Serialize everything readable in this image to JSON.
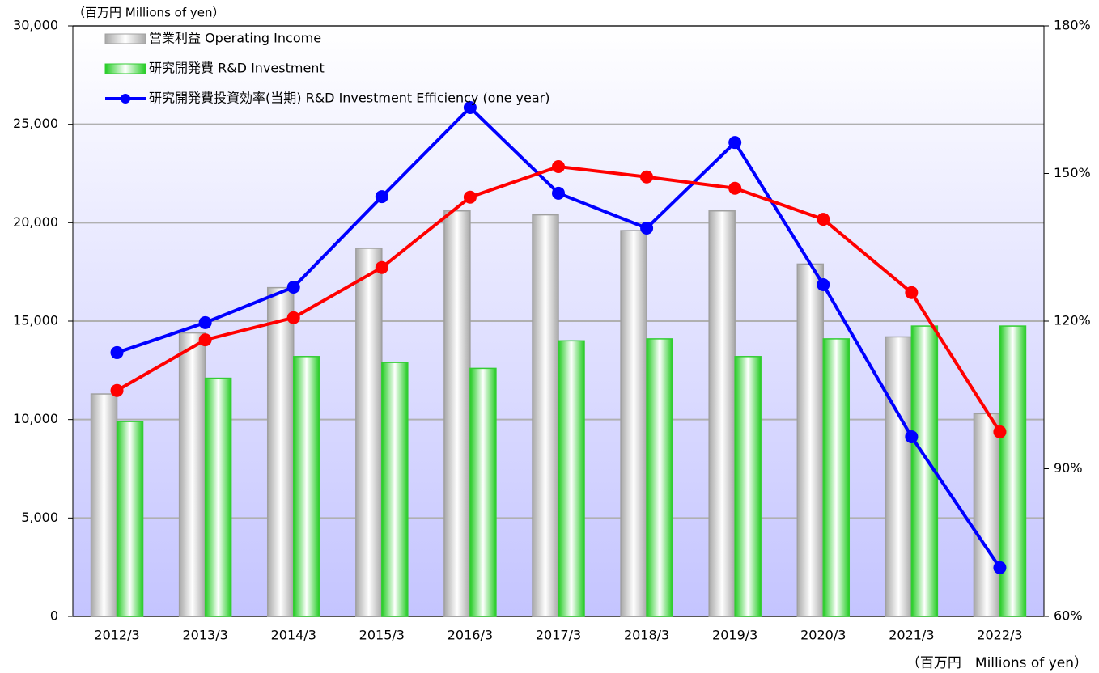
{
  "chart_data": {
    "type": "bar",
    "annotations": [
      "（百万円  Millions of yen）",
      "（百万円　Millions of yen）"
    ],
    "categories": [
      "2012/3",
      "2013/3",
      "2014/3",
      "2015/3",
      "2016/3",
      "2017/3",
      "2018/3",
      "2019/3",
      "2020/3",
      "2021/3",
      "2022/3"
    ],
    "series": [
      {
        "name": "営業利益 Operating Income",
        "type": "bar",
        "color": "#a0a0a0",
        "values": [
          11300,
          14400,
          16700,
          18700,
          20600,
          20400,
          19600,
          20600,
          17900,
          14200,
          10300
        ]
      },
      {
        "name": "研究開発費 R&D Investment",
        "type": "bar",
        "color": "#33cc33",
        "values": [
          9900,
          12100,
          13200,
          12900,
          12600,
          14000,
          14100,
          13200,
          14100,
          14750,
          14750
        ]
      },
      {
        "name": "研究開発費投資効率(当期) R&D Investment Efficiency (one year)",
        "type": "line",
        "axis": "y2",
        "color": "#0000ff",
        "values": [
          113.6,
          119.7,
          126.9,
          145.3,
          163.4,
          146,
          138.9,
          156.3,
          127.4,
          96.5,
          69.9
        ]
      },
      {
        "type": "line",
        "axis": "y2",
        "color": "#ff0000",
        "values": [
          105.9,
          116.2,
          120.7,
          130.9,
          145.2,
          151.4,
          149.3,
          147,
          140.7,
          125.8,
          97.5
        ]
      }
    ],
    "ylim": [
      0,
      30000
    ],
    "yticks": [
      0,
      {
        "value": 5000,
        "label": "5,000"
      },
      {
        "value": 10000,
        "label": "10,000"
      },
      {
        "value": 15000,
        "label": "15,000"
      },
      {
        "value": 20000,
        "label": "20,000"
      },
      {
        "value": 25000,
        "label": "25,000"
      },
      {
        "value": 30000,
        "label": "30,000"
      }
    ],
    "y2lim": [
      60,
      180
    ],
    "y2ticks": [
      {
        "value": 60,
        "label": "60%"
      },
      {
        "value": 90,
        "label": "90%"
      },
      {
        "value": 120,
        "label": "120%"
      },
      {
        "value": 150,
        "label": "150%"
      },
      {
        "value": 180,
        "label": "180%"
      }
    ],
    "grid": true,
    "legend": "top-left"
  }
}
